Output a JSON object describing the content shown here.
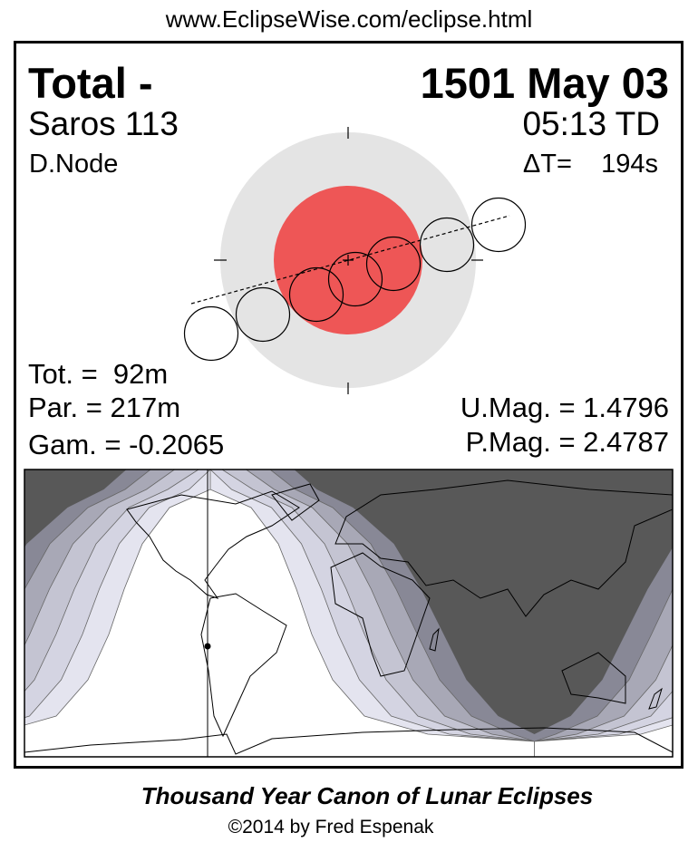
{
  "header": {
    "url": "www.EclipseWise.com/eclipse.html"
  },
  "eclipse": {
    "type": "Total  -",
    "date": "1501 May 03",
    "saros": "Saros 113",
    "time": "05:13 TD",
    "node": "D.Node",
    "delta_t": "ΔT=    194s"
  },
  "parameters": {
    "totality": "Tot. =  92m",
    "partial": "Par. = 217m",
    "gamma": "Gam. = -0.2065",
    "umbral_mag": "U.Mag. = 1.4796",
    "penumbral_mag": "P.Mag. = 2.4787"
  },
  "colors": {
    "penumbra": "#e4e4e4",
    "umbra": "#ee5656",
    "night": "#585858",
    "bands": [
      "#888896",
      "#a8a8b6",
      "#c4c4d2",
      "#d4d4e2",
      "#e4e4ef",
      "#ffffff"
    ]
  },
  "footer": {
    "title": "Thousand Year Canon of Lunar Eclipses",
    "copyright": "©2014 by Fred Espenak"
  }
}
